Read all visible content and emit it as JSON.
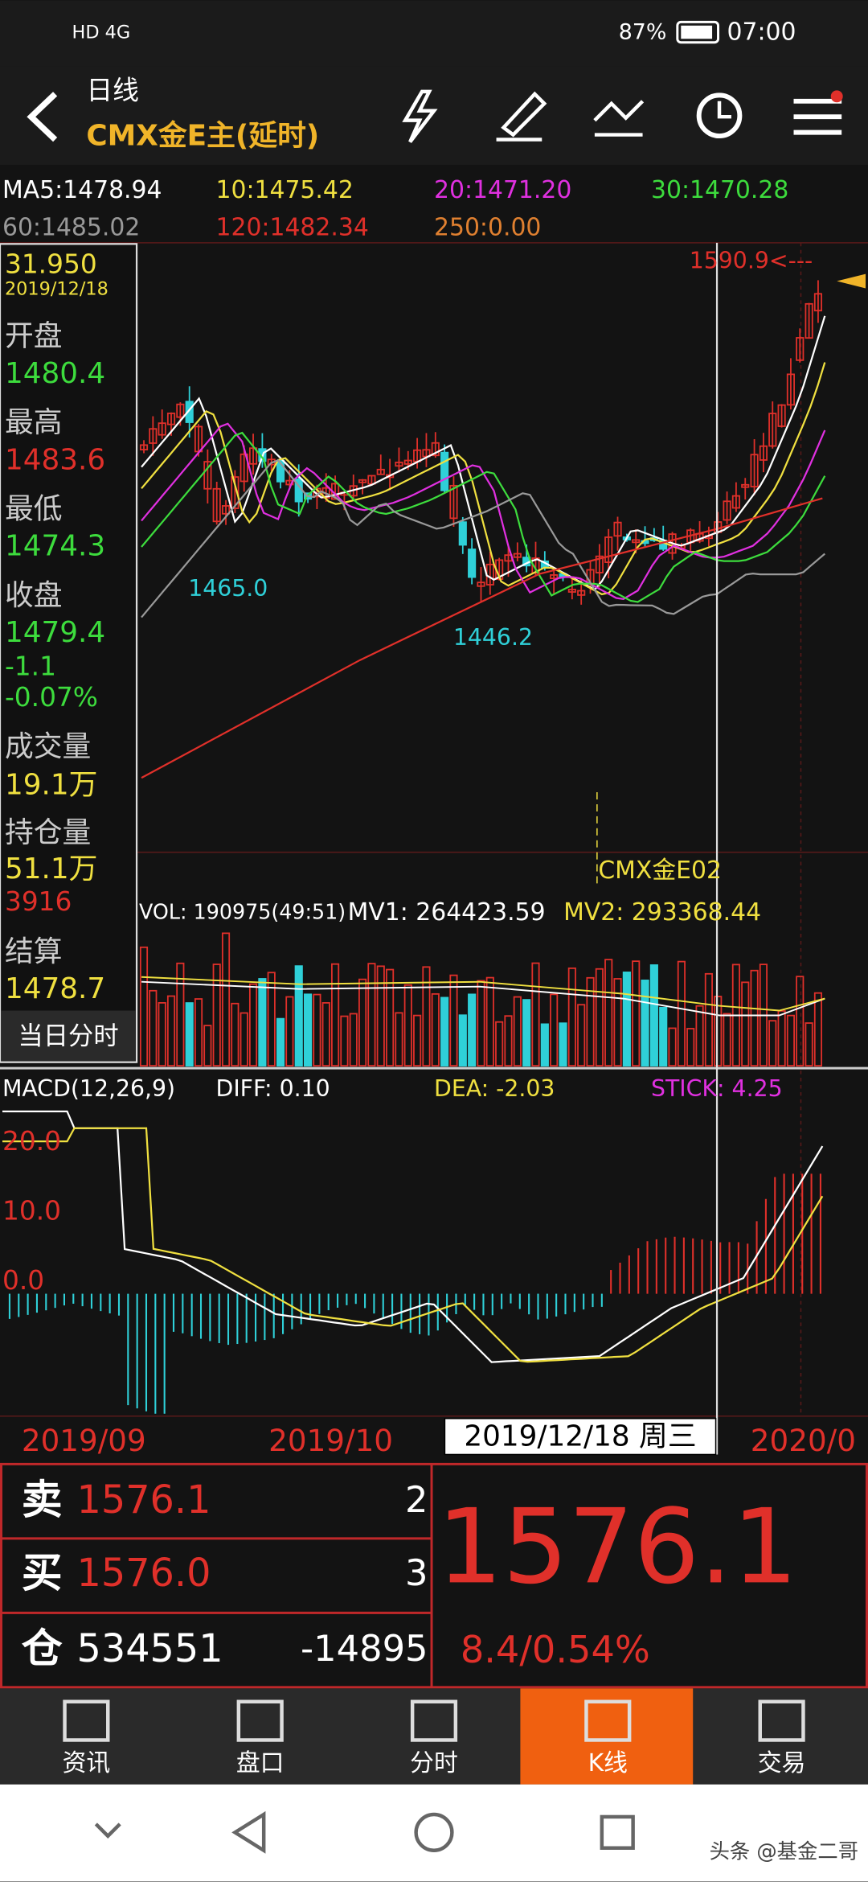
{
  "status": {
    "network": "HD 4G",
    "battery": "87%",
    "time": "07:00"
  },
  "header": {
    "period": "日线",
    "instrument": "CMX金E主(延时)"
  },
  "ma_row": [
    "MA5:1478.94",
    "10:1475.42",
    "20:1471.20",
    "30:1470.28",
    "60:1485.02",
    "120:1482.34",
    "250:0.00"
  ],
  "info_panel": {
    "price": "31.950",
    "date": "2019/12/18",
    "items": [
      {
        "label": "开盘",
        "value": "1480.4"
      },
      {
        "label": "最高",
        "value": "1483.6"
      },
      {
        "label": "最低",
        "value": "1474.3"
      },
      {
        "label": "收盘",
        "value": "1479.4"
      }
    ],
    "change": "-1.1",
    "change_pct": "-0.07%",
    "volume_label": "成交量",
    "volume": "19.1万",
    "oi_label": "持仓量",
    "oi": "51.1万",
    "oi_change": "3916",
    "settle_label": "结算",
    "settle": "1478.7",
    "button": "当日分时"
  },
  "annotations": {
    "high": "1590.9<---",
    "low1": "1465.0",
    "low2": "1446.2",
    "contract": "CMX金E02"
  },
  "volume_row": [
    "VOL: 190975(49:51)",
    "MV1: 264423.59",
    "MV2: 293368.44"
  ],
  "macd": {
    "title": "MACD(12,26,9)",
    "diff": "DIFF: 0.10",
    "dea": "DEA: -2.03",
    "stick": "STICK: 4.25",
    "axis": [
      "20.0",
      "10.0",
      "0.0"
    ]
  },
  "dates": [
    "2019/09",
    "2019/10",
    "2019/12/18 周三",
    "2020/0"
  ],
  "quote": {
    "sell_label": "卖",
    "sell_price": "1576.1",
    "sell_qty": "2",
    "buy_label": "买",
    "buy_price": "1576.0",
    "buy_qty": "3",
    "oi_label": "仓",
    "oi": "534551",
    "oi_change": "-14895",
    "last": "1576.1",
    "change": "8.4/0.54%"
  },
  "tabs": [
    "资讯",
    "盘口",
    "分时",
    "K线",
    "交易"
  ],
  "watermark": "头条 @基金二哥"
}
